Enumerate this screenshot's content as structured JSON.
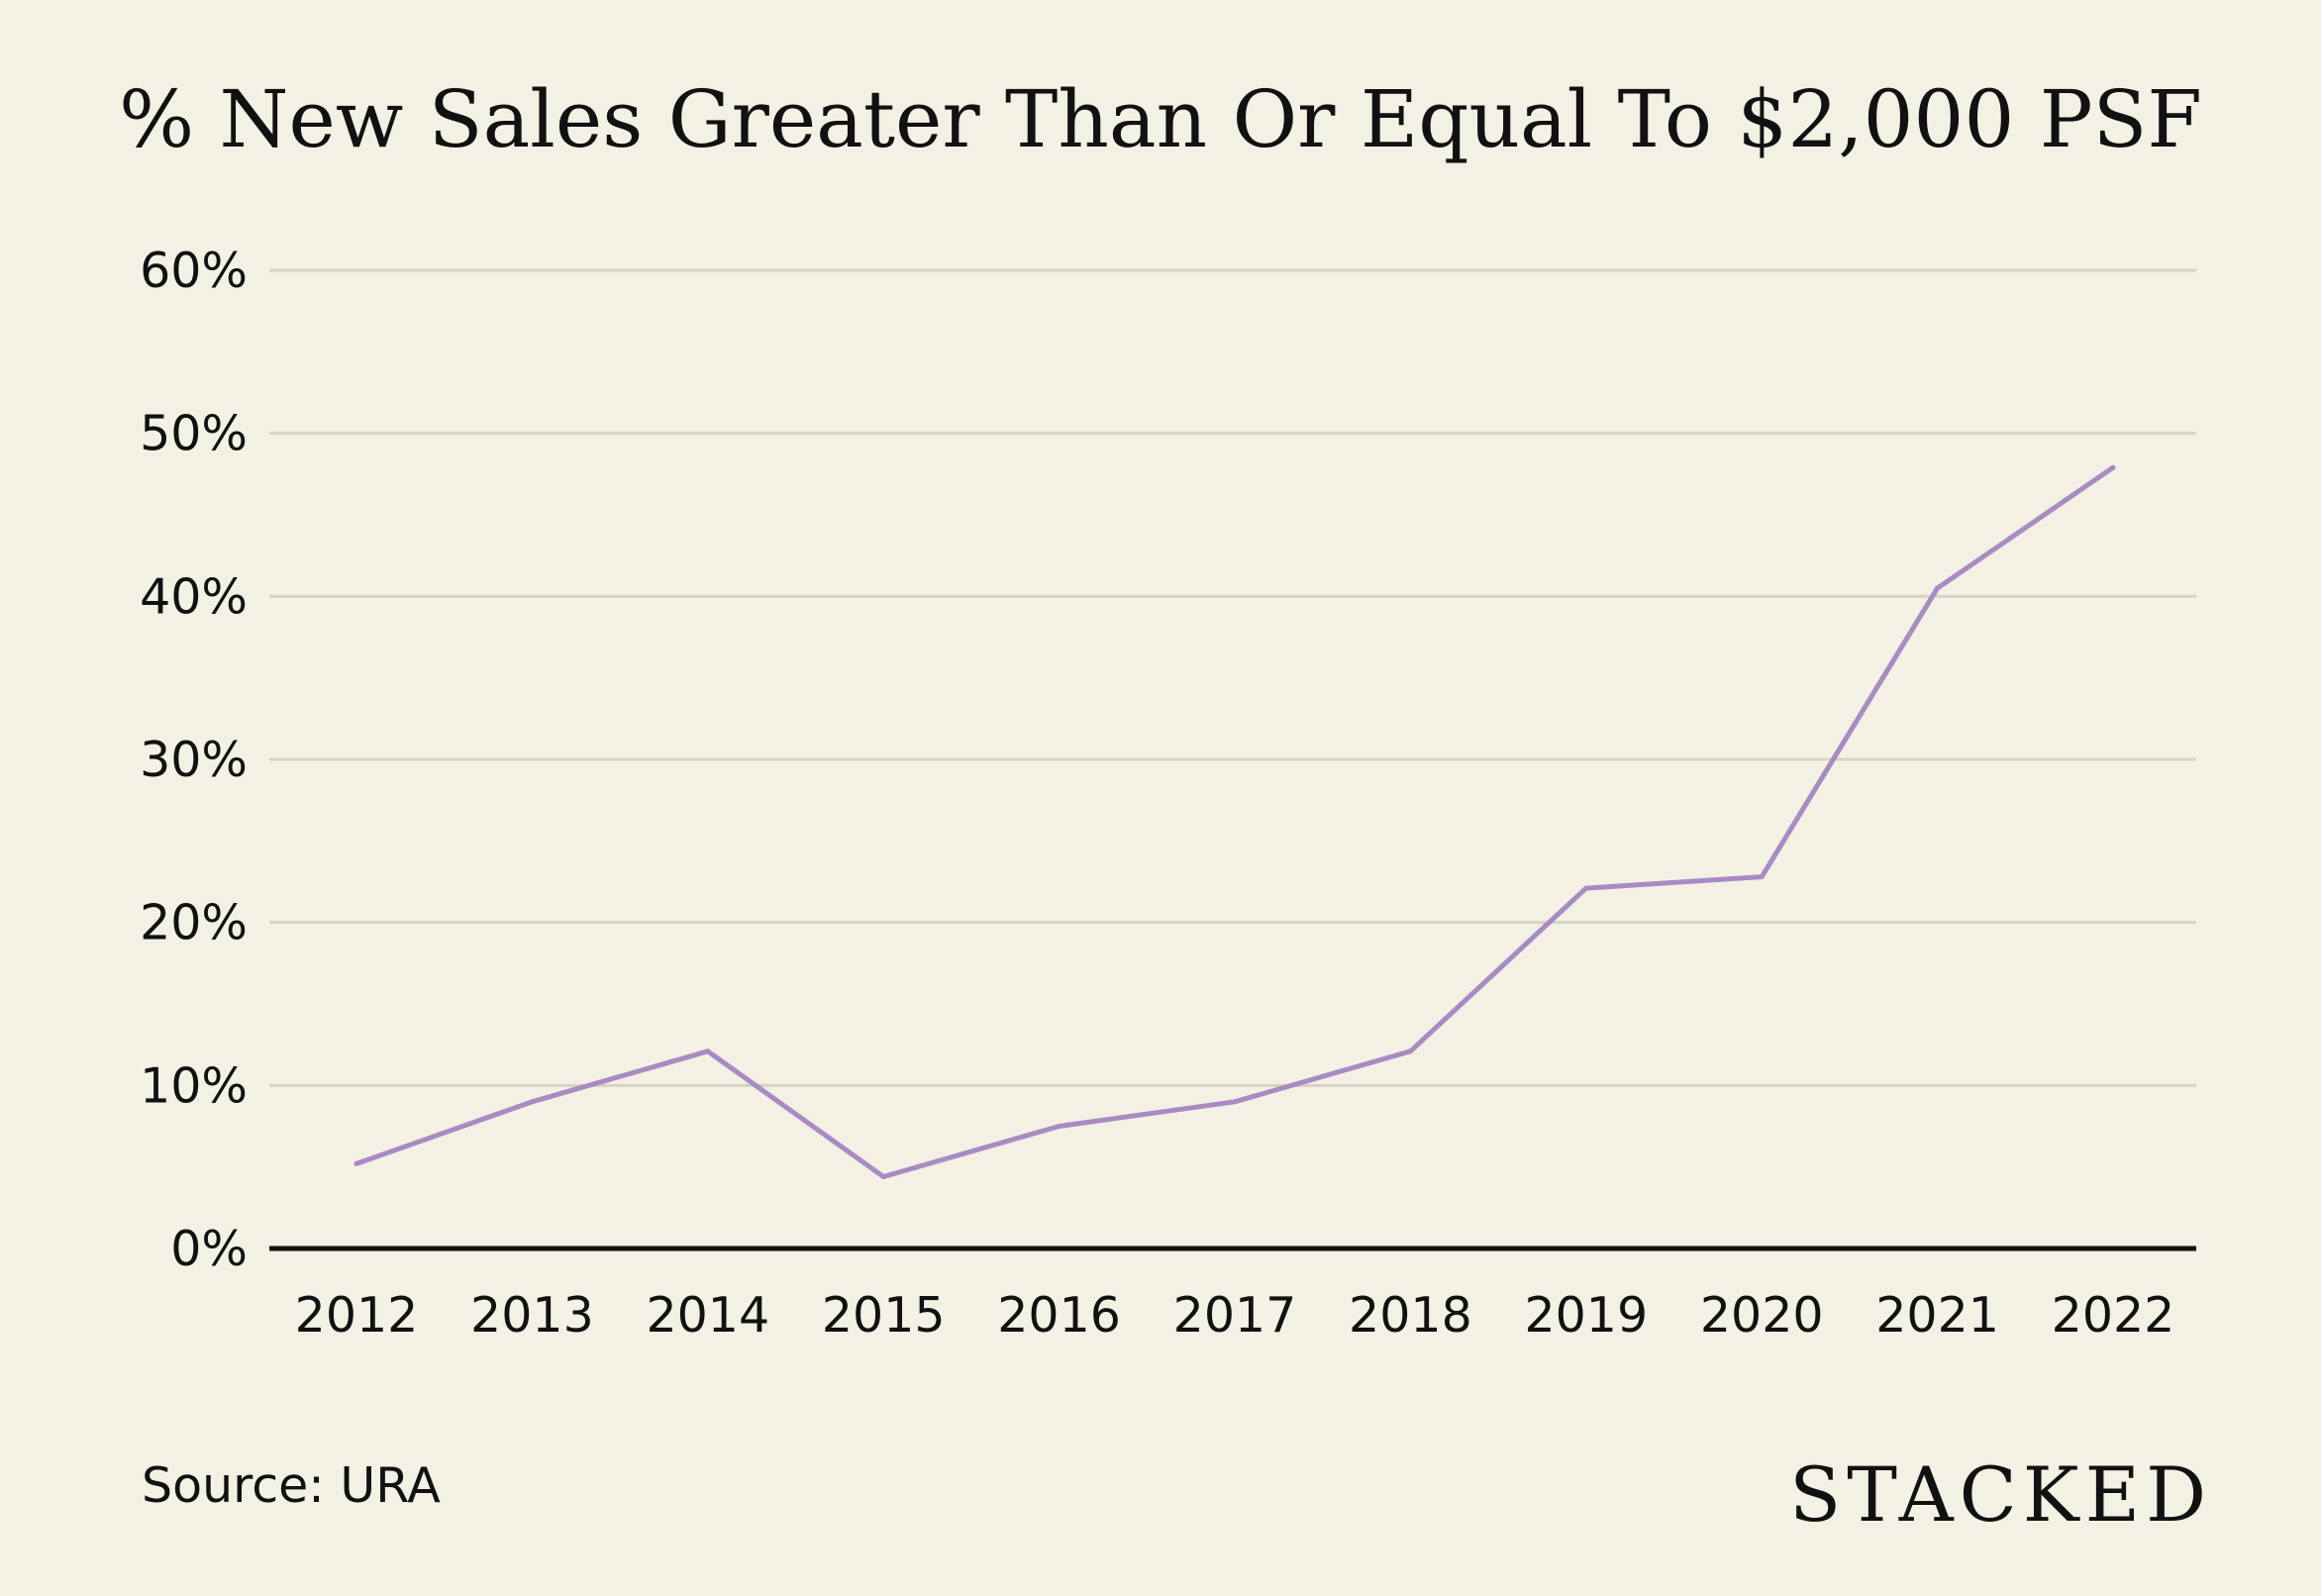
{
  "source": "Source: URA",
  "brand": "STACKED",
  "colors": {
    "background": "#f3f0e4",
    "line": "#a88bc3",
    "grid": "#d6d2c6",
    "axis": "#111111"
  },
  "chart_data": {
    "type": "line",
    "title": "% New Sales Greater Than Or Equal To $2,000 PSF",
    "xlabel": "",
    "ylabel": "",
    "categories": [
      "2012",
      "2013",
      "2014",
      "2015",
      "2016",
      "2017",
      "2018",
      "2019",
      "2020",
      "2021",
      "2022"
    ],
    "series": [
      {
        "values": [
          5.2,
          9.0,
          12.1,
          4.4,
          7.5,
          9.0,
          12.1,
          22.1,
          22.8,
          40.5,
          47.9
        ]
      }
    ],
    "ylim": [
      0,
      60
    ],
    "yticks": [
      0,
      10,
      20,
      30,
      40,
      50,
      60
    ],
    "ytick_labels": [
      "0%",
      "10%",
      "20%",
      "30%",
      "40%",
      "50%",
      "60%"
    ],
    "grid": true,
    "legend": "none"
  }
}
